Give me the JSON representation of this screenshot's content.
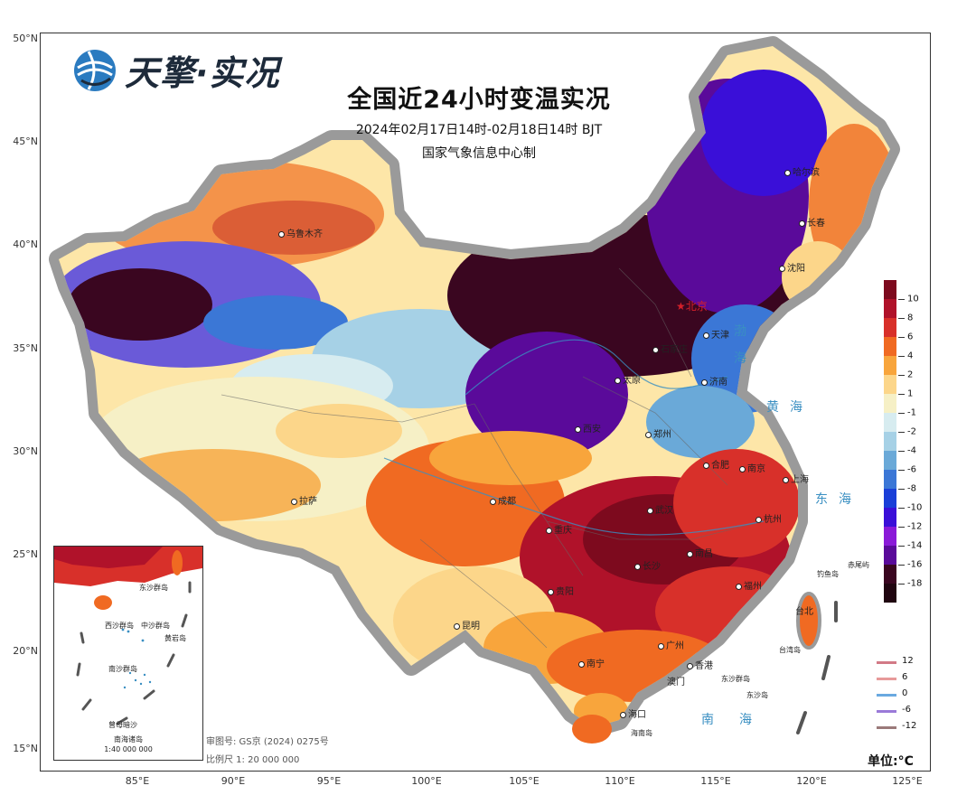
{
  "logo": {
    "brand": "天擎·实况",
    "icon": "globe-icon"
  },
  "title": "全国近24小时变温实况",
  "subtitle": "2024年02月17日14时-02月18日14时 BJT",
  "producer": "国家气象信息中心制",
  "latitude_labels": [
    "50°N",
    "45°N",
    "40°N",
    "35°N",
    "30°N",
    "25°N",
    "20°N",
    "15°N"
  ],
  "longitude_labels": [
    "85°E",
    "90°E",
    "95°E",
    "100°E",
    "105°E",
    "110°E",
    "115°E",
    "120°E",
    "125°E"
  ],
  "legend": {
    "labels": [
      "10",
      "8",
      "6",
      "4",
      "2",
      "1",
      "-1",
      "-2",
      "-4",
      "-6",
      "-8",
      "-10",
      "-12",
      "-14",
      "-16",
      "-18"
    ],
    "colors": [
      "#7d0a1e",
      "#b0122a",
      "#d8302a",
      "#f06a22",
      "#f8a53c",
      "#fcd68a",
      "#f6f0c6",
      "#d7ecf0",
      "#a6d1e6",
      "#6aa9d8",
      "#3b77d6",
      "#1a3fd8",
      "#3a0fd8",
      "#8a1ad8",
      "#5a0a9a",
      "#3a0620",
      "#200510"
    ]
  },
  "contour_legend": [
    {
      "label": "12",
      "color": "#d27a86"
    },
    {
      "label": "6",
      "color": "#e79a9a"
    },
    {
      "label": "0",
      "color": "#6aa9e0"
    },
    {
      "label": "-6",
      "color": "#9a7ad8"
    },
    {
      "label": "-12",
      "color": "#9a7a7a"
    }
  ],
  "unit": "单位:°C",
  "review_number": "审图号: GS京 (2024) 0275号",
  "scale": "比例尺 1: 20 000 000",
  "inset": {
    "title": "南海诸岛",
    "scale": "1:40 000 000"
  },
  "cities": [
    {
      "name": "乌鲁木齐",
      "capital": false
    },
    {
      "name": "哈尔滨",
      "capital": false
    },
    {
      "name": "长春",
      "capital": false
    },
    {
      "name": "沈阳",
      "capital": false
    },
    {
      "name": "北京",
      "capital": true
    },
    {
      "name": "天津",
      "capital": false
    },
    {
      "name": "石家庄",
      "capital": false
    },
    {
      "name": "太原",
      "capital": false
    },
    {
      "name": "济南",
      "capital": false
    },
    {
      "name": "郑州",
      "capital": false
    },
    {
      "name": "西安",
      "capital": false
    },
    {
      "name": "合肥",
      "capital": false
    },
    {
      "name": "南京",
      "capital": false
    },
    {
      "name": "上海",
      "capital": false
    },
    {
      "name": "杭州",
      "capital": false
    },
    {
      "name": "武汉",
      "capital": false
    },
    {
      "name": "成都",
      "capital": false
    },
    {
      "name": "重庆",
      "capital": false
    },
    {
      "name": "长沙",
      "capital": false
    },
    {
      "name": "南昌",
      "capital": false
    },
    {
      "name": "福州",
      "capital": false
    },
    {
      "name": "贵阳",
      "capital": false
    },
    {
      "name": "拉萨",
      "capital": false
    },
    {
      "name": "昆明",
      "capital": false
    },
    {
      "name": "南宁",
      "capital": false
    },
    {
      "name": "广州",
      "capital": false
    },
    {
      "name": "香港",
      "capital": false
    },
    {
      "name": "澳门",
      "capital": false
    },
    {
      "name": "海口",
      "capital": false
    },
    {
      "name": "台北",
      "capital": false
    }
  ],
  "seas": [
    {
      "name": "渤海",
      "orientation": "vertical"
    },
    {
      "name": "黄海",
      "orientation": "horizontal"
    },
    {
      "name": "东海",
      "orientation": "horizontal"
    },
    {
      "name": "南海",
      "orientation": "horizontal"
    }
  ],
  "islands": [
    "钓鱼岛",
    "赤尾屿",
    "台湾岛",
    "东沙群岛",
    "东沙岛",
    "海南岛"
  ],
  "inset_islands": [
    "东沙群岛",
    "西沙群岛",
    "中沙群岛",
    "黄岩岛",
    "南沙群岛",
    "曾母暗沙"
  ]
}
